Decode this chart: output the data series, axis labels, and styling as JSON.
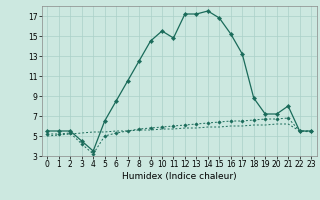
{
  "title": "",
  "xlabel": "Humidex (Indice chaleur)",
  "bg_color": "#cce8e0",
  "grid_color": "#aad0c8",
  "line_color": "#1a6b5a",
  "xlim": [
    -0.5,
    23.5
  ],
  "ylim": [
    3,
    18
  ],
  "xticks": [
    0,
    1,
    2,
    3,
    4,
    5,
    6,
    7,
    8,
    9,
    10,
    11,
    12,
    13,
    14,
    15,
    16,
    17,
    18,
    19,
    20,
    21,
    22,
    23
  ],
  "yticks": [
    3,
    5,
    7,
    9,
    11,
    13,
    15,
    17
  ],
  "series1_x": [
    0,
    1,
    2,
    3,
    4,
    5,
    6,
    7,
    8,
    9,
    10,
    11,
    12,
    13,
    14,
    15,
    16,
    17,
    18,
    19,
    20,
    21,
    22,
    23
  ],
  "series1_y": [
    5.5,
    5.5,
    5.5,
    4.5,
    3.5,
    6.5,
    8.5,
    10.5,
    12.5,
    14.5,
    15.5,
    14.8,
    17.2,
    17.2,
    17.5,
    16.8,
    15.2,
    13.2,
    8.8,
    7.2,
    7.2,
    8.0,
    5.5,
    5.5
  ],
  "series2_x": [
    0,
    1,
    2,
    3,
    4,
    5,
    6,
    7,
    8,
    9,
    10,
    11,
    12,
    13,
    14,
    15,
    16,
    17,
    18,
    19,
    20,
    21,
    22,
    23
  ],
  "series2_y": [
    5.2,
    5.2,
    5.3,
    4.2,
    3.2,
    5.0,
    5.3,
    5.5,
    5.7,
    5.8,
    5.9,
    6.0,
    6.1,
    6.2,
    6.3,
    6.4,
    6.5,
    6.5,
    6.6,
    6.7,
    6.7,
    6.8,
    5.5,
    5.5
  ],
  "series3_x": [
    0,
    1,
    2,
    3,
    4,
    5,
    6,
    7,
    8,
    9,
    10,
    11,
    12,
    13,
    14,
    15,
    16,
    17,
    18,
    19,
    20,
    21,
    22,
    23
  ],
  "series3_y": [
    5.0,
    5.1,
    5.2,
    5.3,
    5.4,
    5.4,
    5.5,
    5.5,
    5.6,
    5.6,
    5.7,
    5.7,
    5.8,
    5.8,
    5.9,
    5.9,
    6.0,
    6.0,
    6.1,
    6.1,
    6.2,
    6.2,
    5.5,
    5.4
  ],
  "tick_fontsize": 5.5,
  "xlabel_fontsize": 6.5
}
